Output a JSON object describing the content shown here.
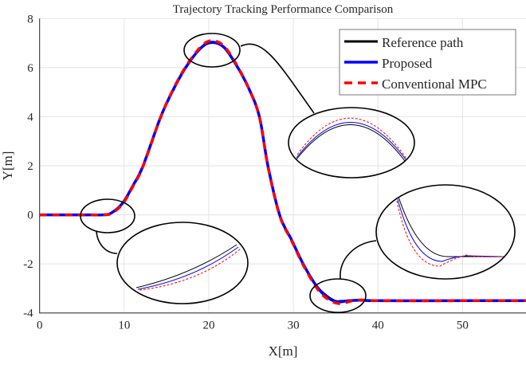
{
  "chart_data": {
    "type": "line",
    "title": "Trajectory Tracking Performance Comparison",
    "xlabel": "X[m]",
    "ylabel": "Y[m]",
    "xlim": [
      0,
      57.5
    ],
    "ylim": [
      -4,
      8
    ],
    "xticks": [
      0,
      10,
      20,
      30,
      40,
      50
    ],
    "yticks": [
      -4,
      -2,
      0,
      2,
      4,
      6,
      8
    ],
    "grid": true,
    "legend_position": "top-right",
    "series": [
      {
        "name": "Reference path",
        "color": "#000000",
        "style": "solid",
        "x": [
          0,
          5,
          7.5,
          8.5,
          9.8,
          11,
          12.2,
          14.3,
          15.8,
          17.3,
          19,
          20.3,
          21.8,
          23.4,
          24.8,
          26,
          27,
          28.4,
          29.8,
          31.2,
          32.8,
          34,
          35,
          36,
          40,
          50,
          57.5
        ],
        "y": [
          0,
          0,
          0,
          0.1,
          0.5,
          1.2,
          2,
          4,
          5.1,
          6,
          6.75,
          7,
          6.8,
          6,
          5.1,
          4,
          2,
          0,
          -1,
          -2,
          -2.9,
          -3.3,
          -3.5,
          -3.5,
          -3.5,
          -3.5,
          -3.5
        ]
      },
      {
        "name": "Proposed",
        "color": "#0000ff",
        "style": "solid",
        "x": [
          0,
          5,
          7.5,
          8.5,
          9.8,
          11,
          12.2,
          14.3,
          15.8,
          17.3,
          19,
          20.3,
          21.8,
          23.4,
          24.8,
          26,
          27,
          28.4,
          29.8,
          31.2,
          32.8,
          34,
          35.2,
          36.5,
          38,
          40,
          50,
          57.5
        ],
        "y": [
          0,
          0,
          0,
          0.08,
          0.47,
          1.17,
          1.97,
          3.98,
          5.1,
          6.02,
          6.78,
          7.04,
          6.83,
          6.02,
          5.1,
          3.98,
          1.98,
          -0.03,
          -1.03,
          -2.03,
          -2.94,
          -3.36,
          -3.55,
          -3.5,
          -3.48,
          -3.5,
          -3.5,
          -3.5
        ]
      },
      {
        "name": "Conventional MPC",
        "color": "#ff0000",
        "style": "dashed",
        "x": [
          0,
          5,
          7.5,
          8.5,
          9.8,
          11,
          12.2,
          14.3,
          15.8,
          17.3,
          19,
          20.3,
          21.8,
          23.4,
          24.8,
          26,
          27,
          28.4,
          29.8,
          31.2,
          32.8,
          34,
          35.4,
          36.8,
          38,
          40,
          50,
          57.5
        ],
        "y": [
          0,
          0,
          0,
          0.06,
          0.44,
          1.14,
          1.95,
          3.97,
          5.12,
          6.05,
          6.83,
          7.1,
          6.88,
          6.05,
          5.1,
          3.97,
          1.96,
          -0.05,
          -1.06,
          -2.07,
          -3.0,
          -3.42,
          -3.62,
          -3.52,
          -3.47,
          -3.5,
          -3.5,
          -3.5
        ]
      }
    ]
  }
}
